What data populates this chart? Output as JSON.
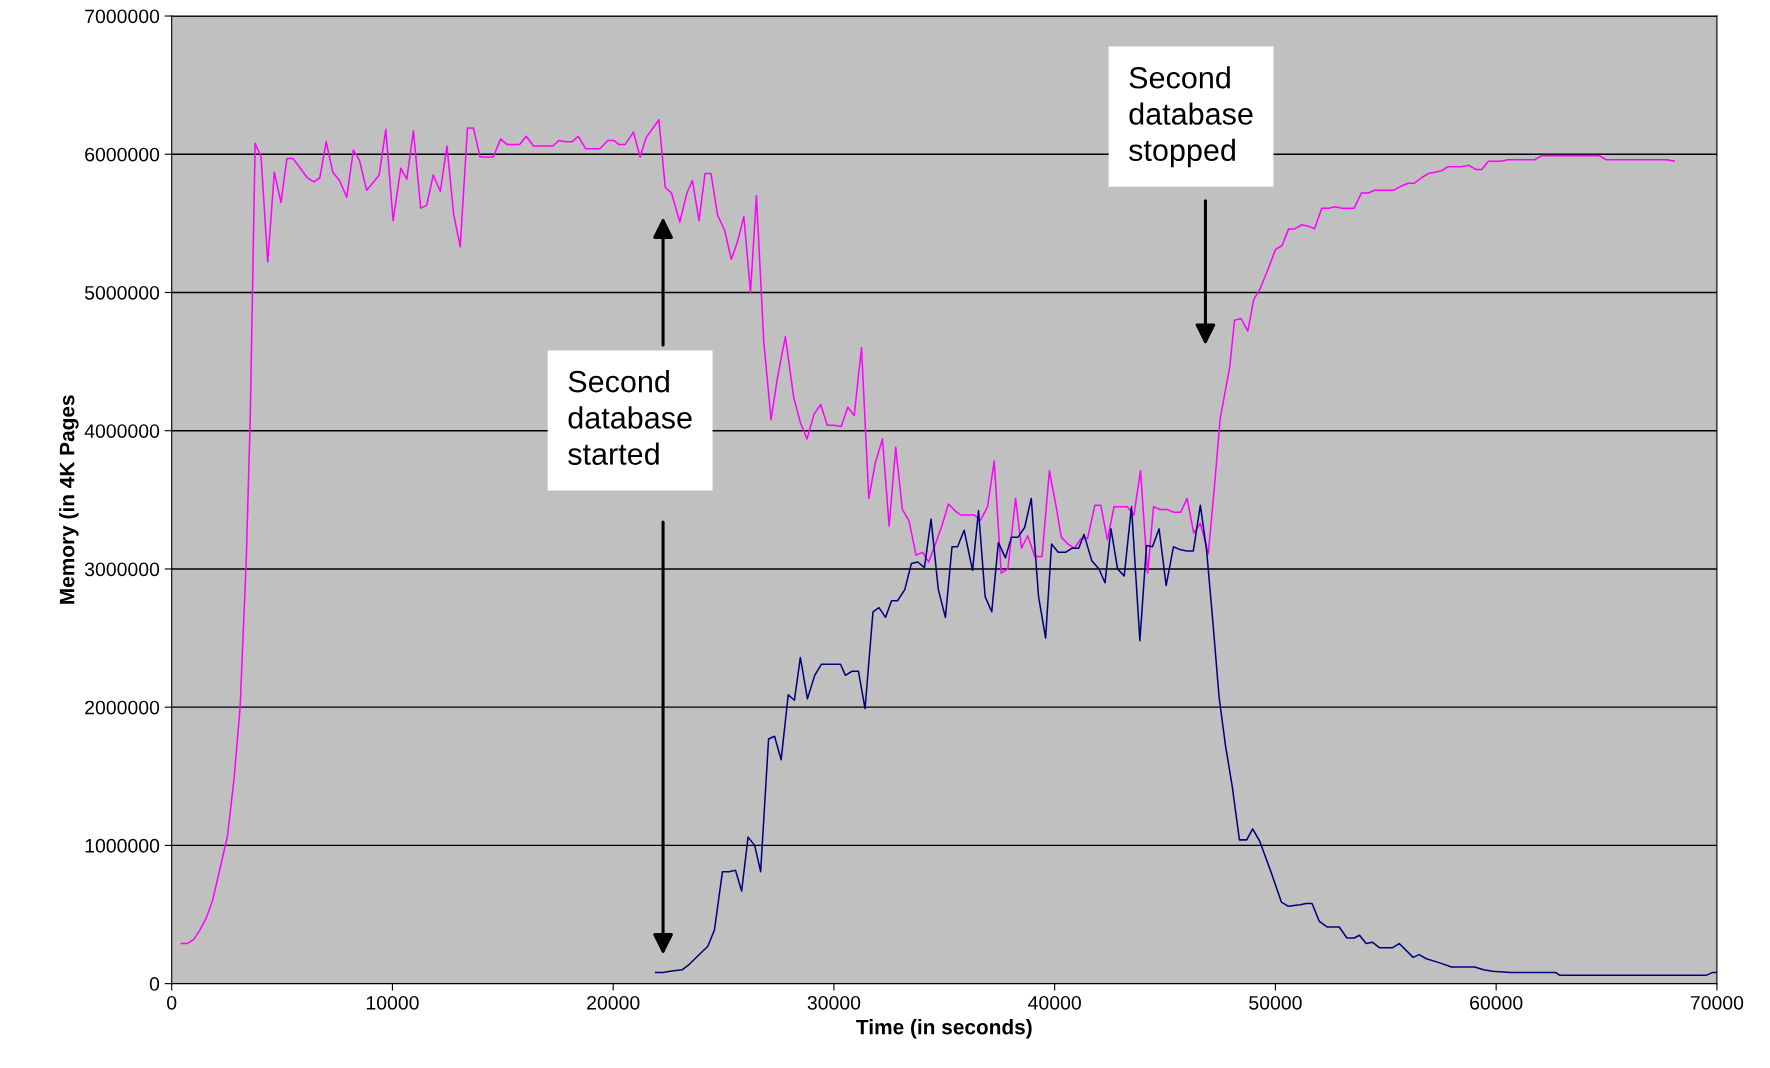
{
  "chart_data": {
    "type": "line",
    "xlabel": "Time (in seconds)",
    "ylabel": "Memory (in 4K Pages",
    "xlim": [
      0,
      70000
    ],
    "xticks": [
      0,
      10000,
      20000,
      30000,
      40000,
      50000,
      60000,
      70000
    ],
    "ylim": [
      0,
      7000000
    ],
    "yticks": [
      0,
      1000000,
      2000000,
      3000000,
      4000000,
      5000000,
      6000000,
      7000000
    ],
    "grid": "y",
    "marker": "none",
    "line_style": "solid",
    "series": [
      {
        "color": "#ff00ff",
        "x": [
          440,
          700,
          1000,
          1250,
          1550,
          1850,
          2200,
          2530,
          2830,
          3100,
          3380,
          3560,
          3780,
          4050,
          4350,
          4650,
          4950,
          5220,
          5490,
          5820,
          6140,
          6440,
          6710,
          7000,
          7300,
          7600,
          7930,
          8230,
          8500,
          8830,
          9100,
          9400,
          9700,
          10030,
          10380,
          10650,
          10950,
          11280,
          11550,
          11850,
          12170,
          12470,
          12770,
          13070,
          13400,
          13670,
          13970,
          14570,
          14900,
          15200,
          15760,
          16060,
          16390,
          17260,
          17550,
          17850,
          18130,
          18420,
          18750,
          19400,
          19760,
          20030,
          20270,
          20540,
          20920,
          21220,
          21490,
          22070,
          22360,
          22640,
          23020,
          23340,
          23590,
          23890,
          24160,
          24430,
          24730,
          25050,
          25350,
          25620,
          25920,
          26220,
          26490,
          26820,
          27150,
          27450,
          27800,
          28180,
          28480,
          28780,
          29100,
          29400,
          29700,
          30000,
          30330,
          30630,
          30920,
          31250,
          31580,
          31880,
          32200,
          32500,
          32800,
          33100,
          33400,
          33720,
          34020,
          34290,
          34620,
          34890,
          35190,
          35490,
          35760,
          36360,
          36630,
          36960,
          37260,
          37580,
          37880,
          38230,
          38500,
          38780,
          39100,
          39430,
          39760,
          40080,
          40300,
          40600,
          40900,
          41200,
          41490,
          41820,
          42090,
          42390,
          42690,
          43290,
          43590,
          43890,
          44210,
          44480,
          44780,
          45080,
          45410,
          45710,
          46000,
          46300,
          46600,
          46960,
          47230,
          47500,
          47930,
          48150,
          48450,
          48750,
          49020,
          49290,
          49670,
          50000,
          50300,
          50600,
          50870,
          51200,
          51500,
          51770,
          52100,
          52400,
          52720,
          53000,
          53570,
          53900,
          54200,
          54500,
          55370,
          55700,
          56020,
          56290,
          56620,
          56920,
          57220,
          57520,
          57820,
          58420,
          58770,
          59070,
          59350,
          59650,
          60220,
          60520,
          61740,
          62070,
          64660,
          64990,
          67740,
          68070
        ],
        "values": [
          290000,
          290000,
          320000,
          380000,
          470000,
          600000,
          840000,
          1070000,
          1490000,
          2000000,
          3070000,
          4100000,
          6080000,
          5980000,
          5220000,
          5870000,
          5650000,
          5970000,
          5970000,
          5900000,
          5830000,
          5800000,
          5830000,
          6090000,
          5870000,
          5810000,
          5690000,
          6030000,
          5960000,
          5740000,
          5790000,
          5850000,
          6180000,
          5520000,
          5900000,
          5820000,
          6170000,
          5610000,
          5630000,
          5850000,
          5730000,
          6060000,
          5570000,
          5330000,
          6190000,
          6190000,
          5980000,
          5980000,
          6110000,
          6070000,
          6070000,
          6130000,
          6060000,
          6060000,
          6100000,
          6090000,
          6090000,
          6130000,
          6040000,
          6040000,
          6100000,
          6100000,
          6070000,
          6070000,
          6160000,
          5980000,
          6120000,
          6250000,
          5760000,
          5720000,
          5510000,
          5720000,
          5810000,
          5520000,
          5860000,
          5860000,
          5560000,
          5450000,
          5240000,
          5360000,
          5550000,
          5000000,
          5700000,
          4650000,
          4080000,
          4390000,
          4680000,
          4240000,
          4060000,
          3940000,
          4120000,
          4190000,
          4040000,
          4040000,
          4030000,
          4170000,
          4110000,
          4600000,
          3510000,
          3770000,
          3940000,
          3310000,
          3880000,
          3430000,
          3350000,
          3100000,
          3120000,
          3050000,
          3190000,
          3310000,
          3470000,
          3420000,
          3390000,
          3390000,
          3350000,
          3450000,
          3780000,
          2970000,
          3000000,
          3510000,
          3150000,
          3240000,
          3090000,
          3090000,
          3710000,
          3440000,
          3230000,
          3180000,
          3150000,
          3220000,
          3220000,
          3460000,
          3460000,
          3210000,
          3450000,
          3450000,
          3390000,
          3710000,
          2970000,
          3450000,
          3430000,
          3430000,
          3410000,
          3410000,
          3510000,
          3260000,
          3330000,
          3110000,
          3580000,
          4090000,
          4460000,
          4800000,
          4810000,
          4720000,
          4950000,
          5020000,
          5170000,
          5310000,
          5340000,
          5460000,
          5460000,
          5490000,
          5480000,
          5460000,
          5610000,
          5610000,
          5620000,
          5610000,
          5610000,
          5720000,
          5720000,
          5740000,
          5740000,
          5770000,
          5790000,
          5790000,
          5830000,
          5860000,
          5870000,
          5880000,
          5910000,
          5910000,
          5920000,
          5890000,
          5890000,
          5950000,
          5950000,
          5960000,
          5960000,
          5990000,
          5990000,
          5960000,
          5960000,
          5950000
        ]
      },
      {
        "color": "#000080",
        "x": [
          21930,
          22250,
          22580,
          23120,
          23450,
          23830,
          24290,
          24590,
          24950,
          25240,
          25540,
          25820,
          26110,
          26410,
          26680,
          27040,
          27310,
          27610,
          27930,
          28210,
          28480,
          28800,
          29130,
          29430,
          30300,
          30520,
          30820,
          31110,
          31410,
          31770,
          32040,
          32340,
          32610,
          32880,
          33210,
          33510,
          33800,
          34100,
          34400,
          34730,
          35050,
          35350,
          35600,
          35900,
          36280,
          36550,
          36850,
          37150,
          37450,
          37770,
          38040,
          38340,
          38640,
          38940,
          39270,
          39590,
          39860,
          40160,
          40490,
          40790,
          41090,
          41330,
          41680,
          42010,
          42280,
          42550,
          42850,
          43150,
          43480,
          43860,
          44160,
          44430,
          44730,
          45050,
          45380,
          45680,
          45980,
          46280,
          46600,
          46880,
          47170,
          47450,
          47740,
          48040,
          48370,
          48700,
          48970,
          49290,
          49840,
          50270,
          50570,
          51120,
          51390,
          51660,
          51990,
          52340,
          52890,
          53240,
          53570,
          53810,
          54110,
          54390,
          54710,
          55310,
          55610,
          56240,
          56510,
          56840,
          57440,
          57980,
          59020,
          59430,
          59840,
          60650,
          62700,
          62890,
          69510,
          69780,
          70000
        ],
        "values": [
          80000,
          80000,
          90000,
          100000,
          140000,
          200000,
          270000,
          390000,
          810000,
          810000,
          820000,
          670000,
          1060000,
          1000000,
          810000,
          1770000,
          1790000,
          1620000,
          2090000,
          2050000,
          2360000,
          2060000,
          2230000,
          2310000,
          2310000,
          2230000,
          2260000,
          2260000,
          1990000,
          2690000,
          2720000,
          2650000,
          2770000,
          2770000,
          2850000,
          3040000,
          3050000,
          3010000,
          3360000,
          2850000,
          2650000,
          3160000,
          3160000,
          3280000,
          2990000,
          3420000,
          2800000,
          2690000,
          3190000,
          3080000,
          3230000,
          3230000,
          3300000,
          3510000,
          2800000,
          2500000,
          3180000,
          3120000,
          3120000,
          3150000,
          3150000,
          3250000,
          3060000,
          3000000,
          2900000,
          3290000,
          3000000,
          2950000,
          3450000,
          2480000,
          3170000,
          3160000,
          3290000,
          2880000,
          3160000,
          3140000,
          3130000,
          3130000,
          3460000,
          3140000,
          2610000,
          2070000,
          1720000,
          1430000,
          1040000,
          1040000,
          1120000,
          1030000,
          790000,
          590000,
          560000,
          570000,
          580000,
          580000,
          450000,
          410000,
          410000,
          330000,
          330000,
          350000,
          290000,
          300000,
          260000,
          260000,
          290000,
          190000,
          210000,
          180000,
          150000,
          120000,
          120000,
          100000,
          90000,
          80000,
          80000,
          60000,
          60000,
          80000,
          80000
        ]
      }
    ],
    "annotations": [
      "Second\ndatabase\nstarted",
      "Second\ndatabase\nstopped"
    ]
  }
}
